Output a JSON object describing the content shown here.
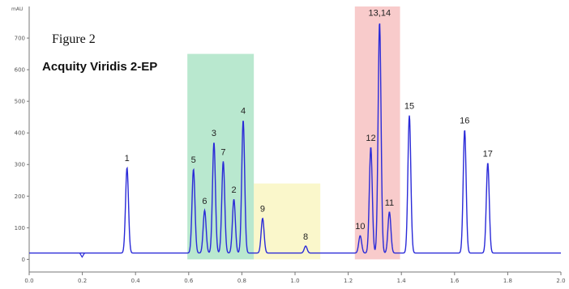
{
  "chart_data": {
    "type": "line",
    "figure_label": "Figure 2",
    "title": "Acquity Viridis 2-EP",
    "ylabel_unit": "mAU",
    "xlim": [
      0,
      2.0
    ],
    "ylim": [
      -40,
      800
    ],
    "x_ticks": [
      "0.0",
      "0.2",
      "0.4",
      "0.6",
      "0.8",
      "1.0",
      "1.2",
      "1.4",
      "1.6",
      "1.8",
      "2.0"
    ],
    "x_tick_values": [
      0.0,
      0.2,
      0.4,
      0.6,
      0.8,
      1.0,
      1.2,
      1.4,
      1.6,
      1.8,
      2.0
    ],
    "y_ticks": [
      "0",
      "100",
      "200",
      "300",
      "400",
      "500",
      "600",
      "700"
    ],
    "y_tick_values": [
      0,
      100,
      200,
      300,
      400,
      500,
      600,
      700
    ],
    "baseline": 20,
    "line_color": "#2a2ad8",
    "highlight_regions": [
      {
        "x0": 0.595,
        "x1": 0.845,
        "y0": 0,
        "y1": 650,
        "color": "#7fd6a8"
      },
      {
        "x0": 0.845,
        "x1": 1.095,
        "y0": 0,
        "y1": 240,
        "color": "#f5f0a0"
      },
      {
        "x0": 1.225,
        "x1": 1.395,
        "y0": 0,
        "y1": 800,
        "color": "#f3a0a0"
      }
    ],
    "series": [
      {
        "peaks": [
          {
            "label": "1",
            "x": 0.368,
            "y": 290
          },
          {
            "label": "5",
            "x": 0.618,
            "y": 285
          },
          {
            "label": "6",
            "x": 0.66,
            "y": 155
          },
          {
            "label": "3",
            "x": 0.695,
            "y": 370
          },
          {
            "label": "7",
            "x": 0.73,
            "y": 310
          },
          {
            "label": "2",
            "x": 0.77,
            "y": 190
          },
          {
            "label": "4",
            "x": 0.805,
            "y": 440
          },
          {
            "label": "9",
            "x": 0.878,
            "y": 130
          },
          {
            "label": "8",
            "x": 1.04,
            "y": 42
          },
          {
            "label": "10",
            "x": 1.245,
            "y": 75
          },
          {
            "label": "12",
            "x": 1.285,
            "y": 355
          },
          {
            "label": "13,14",
            "x": 1.318,
            "y": 750
          },
          {
            "label": "11",
            "x": 1.355,
            "y": 150
          },
          {
            "label": "15",
            "x": 1.43,
            "y": 455
          },
          {
            "label": "16",
            "x": 1.638,
            "y": 410
          },
          {
            "label": "17",
            "x": 1.725,
            "y": 305
          }
        ]
      }
    ]
  }
}
